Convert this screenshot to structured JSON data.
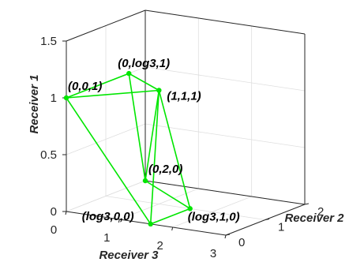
{
  "chart_data": {
    "type": "scatter3d",
    "title": "",
    "axes": {
      "x": {
        "label": "Receiver 3",
        "lim": [
          0,
          3
        ],
        "ticks": [
          "0",
          "1",
          "2",
          "3"
        ]
      },
      "y": {
        "label": "Receiver 2",
        "lim": [
          0,
          2
        ],
        "ticks": [
          "0",
          "1",
          "2"
        ]
      },
      "z": {
        "label": "Receiver 1",
        "lim": [
          0,
          1.5
        ],
        "ticks": [
          "0",
          "0.5",
          "1",
          "1.5"
        ]
      }
    },
    "grid": true,
    "color": "#00e600",
    "points": [
      {
        "label": "(0,0,1)",
        "x": 0,
        "y": 0,
        "z": 1
      },
      {
        "label": "(0,log3,1)",
        "x": 0,
        "y": 1.585,
        "z": 1
      },
      {
        "label": "(1,1,1)",
        "x": 1,
        "y": 1,
        "z": 1
      },
      {
        "label": "(0,2,0)",
        "x": 0,
        "y": 2,
        "z": 0
      },
      {
        "label": "(log3,0,0)",
        "x": 1.585,
        "y": 0,
        "z": 0
      },
      {
        "label": "(log3,1,0)",
        "x": 1.585,
        "y": 1,
        "z": 0
      }
    ],
    "edges": [
      [
        0,
        1
      ],
      [
        0,
        2
      ],
      [
        1,
        2
      ],
      [
        1,
        3
      ],
      [
        2,
        3
      ],
      [
        0,
        4
      ],
      [
        2,
        4
      ],
      [
        2,
        5
      ],
      [
        4,
        5
      ],
      [
        5,
        3
      ]
    ]
  }
}
